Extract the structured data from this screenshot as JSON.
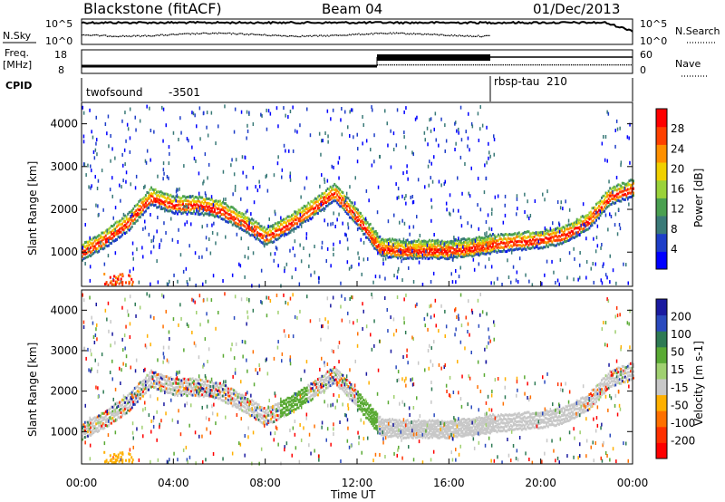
{
  "header": {
    "station": "Blackstone (fitACF)",
    "beam": "Beam 04",
    "date": "01/Dec/2013"
  },
  "colors": {
    "power_scale": [
      "#0000ff",
      "#1e3ec8",
      "#3a7a78",
      "#4aa050",
      "#9ad23a",
      "#f0d000",
      "#ff9000",
      "#ff4000",
      "#ff0000"
    ],
    "velocity_scale": [
      "#1a1aa0",
      "#2a4abe",
      "#2e7a54",
      "#5aaa34",
      "#a0d070",
      "#c8c8c8",
      "#ffb000",
      "#ff7000",
      "#ff3000",
      "#ff0000"
    ],
    "grey": "#c0c0c0",
    "blue_scatter": "#1c4ab0"
  },
  "panels": {
    "nsky": {
      "left_label": "N.Sky",
      "right_label": "N.Search",
      "left_ticks": [
        "10^5",
        "10^0"
      ],
      "right_ticks": [
        "10^5",
        "10^0"
      ]
    },
    "freq": {
      "left_label_1": "Freq.",
      "left_label_2": "[MHz]",
      "left_ticks": [
        "18",
        "8"
      ],
      "right_label": "Nave",
      "right_ticks": [
        "60",
        "0"
      ]
    },
    "cpid": {
      "label": "CPID",
      "programs": [
        {
          "name": "twofsound",
          "id": "-3501"
        },
        {
          "name": "rbsp-tau",
          "id": "210"
        }
      ]
    }
  },
  "chart_data": [
    {
      "type": "heatmap",
      "name": "Power",
      "ylabel": "Slant Range [km]",
      "colorbar_label": "Power [dB]",
      "colorbar_ticks": [
        "28",
        "24",
        "20",
        "16",
        "12",
        "8",
        "4"
      ],
      "yticks": [
        "1000",
        "2000",
        "3000",
        "4000"
      ],
      "ylim": [
        200,
        4500
      ],
      "xlim_hours": [
        0,
        24
      ],
      "echo_band_hours": [
        0,
        1,
        2,
        3,
        4,
        5,
        6,
        7,
        8,
        9,
        10,
        11,
        12,
        13,
        14,
        15,
        16,
        17,
        18,
        19,
        20,
        21,
        22,
        23,
        24
      ],
      "echo_band_center_km": [
        1000,
        1300,
        1700,
        2300,
        2100,
        2100,
        2000,
        1700,
        1350,
        1650,
        2000,
        2400,
        1800,
        1100,
        1050,
        1050,
        1050,
        1100,
        1200,
        1250,
        1300,
        1400,
        1700,
        2300,
        2500
      ]
    },
    {
      "type": "heatmap",
      "name": "Velocity",
      "ylabel": "Slant Range [km]",
      "colorbar_label": "Velocity [m s-1]",
      "colorbar_ticks": [
        "200",
        "100",
        "50",
        "15",
        "-15",
        "-50",
        "-100",
        "-200"
      ],
      "yticks": [
        "1000",
        "2000",
        "3000",
        "4000"
      ],
      "ylim": [
        200,
        4500
      ],
      "xlim_hours": [
        0,
        24
      ]
    }
  ],
  "x_axis": {
    "ticks": [
      "00:00",
      "04:00",
      "08:00",
      "12:00",
      "16:00",
      "20:00",
      "00:00"
    ],
    "label": "Time UT"
  }
}
